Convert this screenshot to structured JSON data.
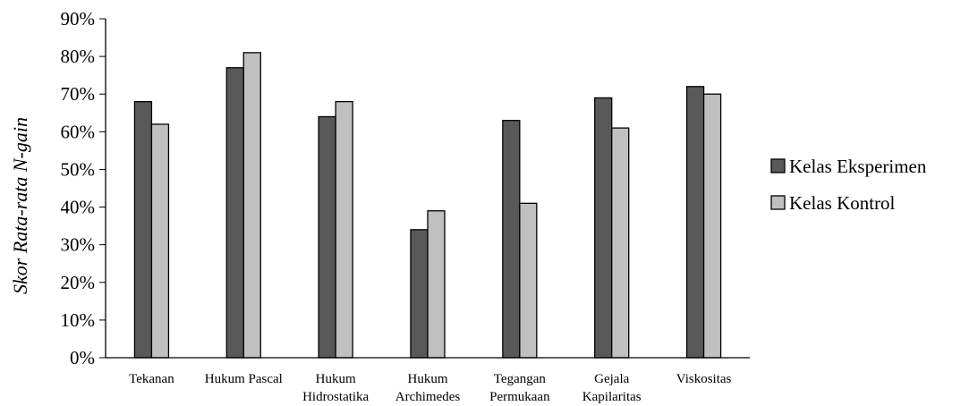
{
  "chart_data": {
    "type": "bar",
    "title": "",
    "xlabel": "",
    "ylabel": "Skor Rata-rata N-gain",
    "ylim": [
      0,
      90
    ],
    "ytick_values": [
      0,
      10,
      20,
      30,
      40,
      50,
      60,
      70,
      80,
      90
    ],
    "ytick_labels": [
      "0%",
      "10%",
      "20%",
      "30%",
      "40%",
      "50%",
      "60%",
      "70%",
      "80%",
      "90%"
    ],
    "categories": [
      [
        "Tekanan"
      ],
      [
        "Hukum Pascal"
      ],
      [
        "Hukum",
        "Hidrostatika"
      ],
      [
        "Hukum",
        "Archimedes"
      ],
      [
        "Tegangan",
        "Permukaan"
      ],
      [
        "Gejala",
        "Kapilaritas"
      ],
      [
        "Viskositas"
      ]
    ],
    "series": [
      {
        "name": "Kelas Eksperimen",
        "color": "#595959",
        "values": [
          68,
          77,
          64,
          34,
          63,
          69,
          72
        ]
      },
      {
        "name": "Kelas Kontrol",
        "color": "#c0c0c0",
        "values": [
          62,
          81,
          68,
          39,
          41,
          61,
          70
        ]
      }
    ],
    "grid": false,
    "legend_position": "right"
  }
}
